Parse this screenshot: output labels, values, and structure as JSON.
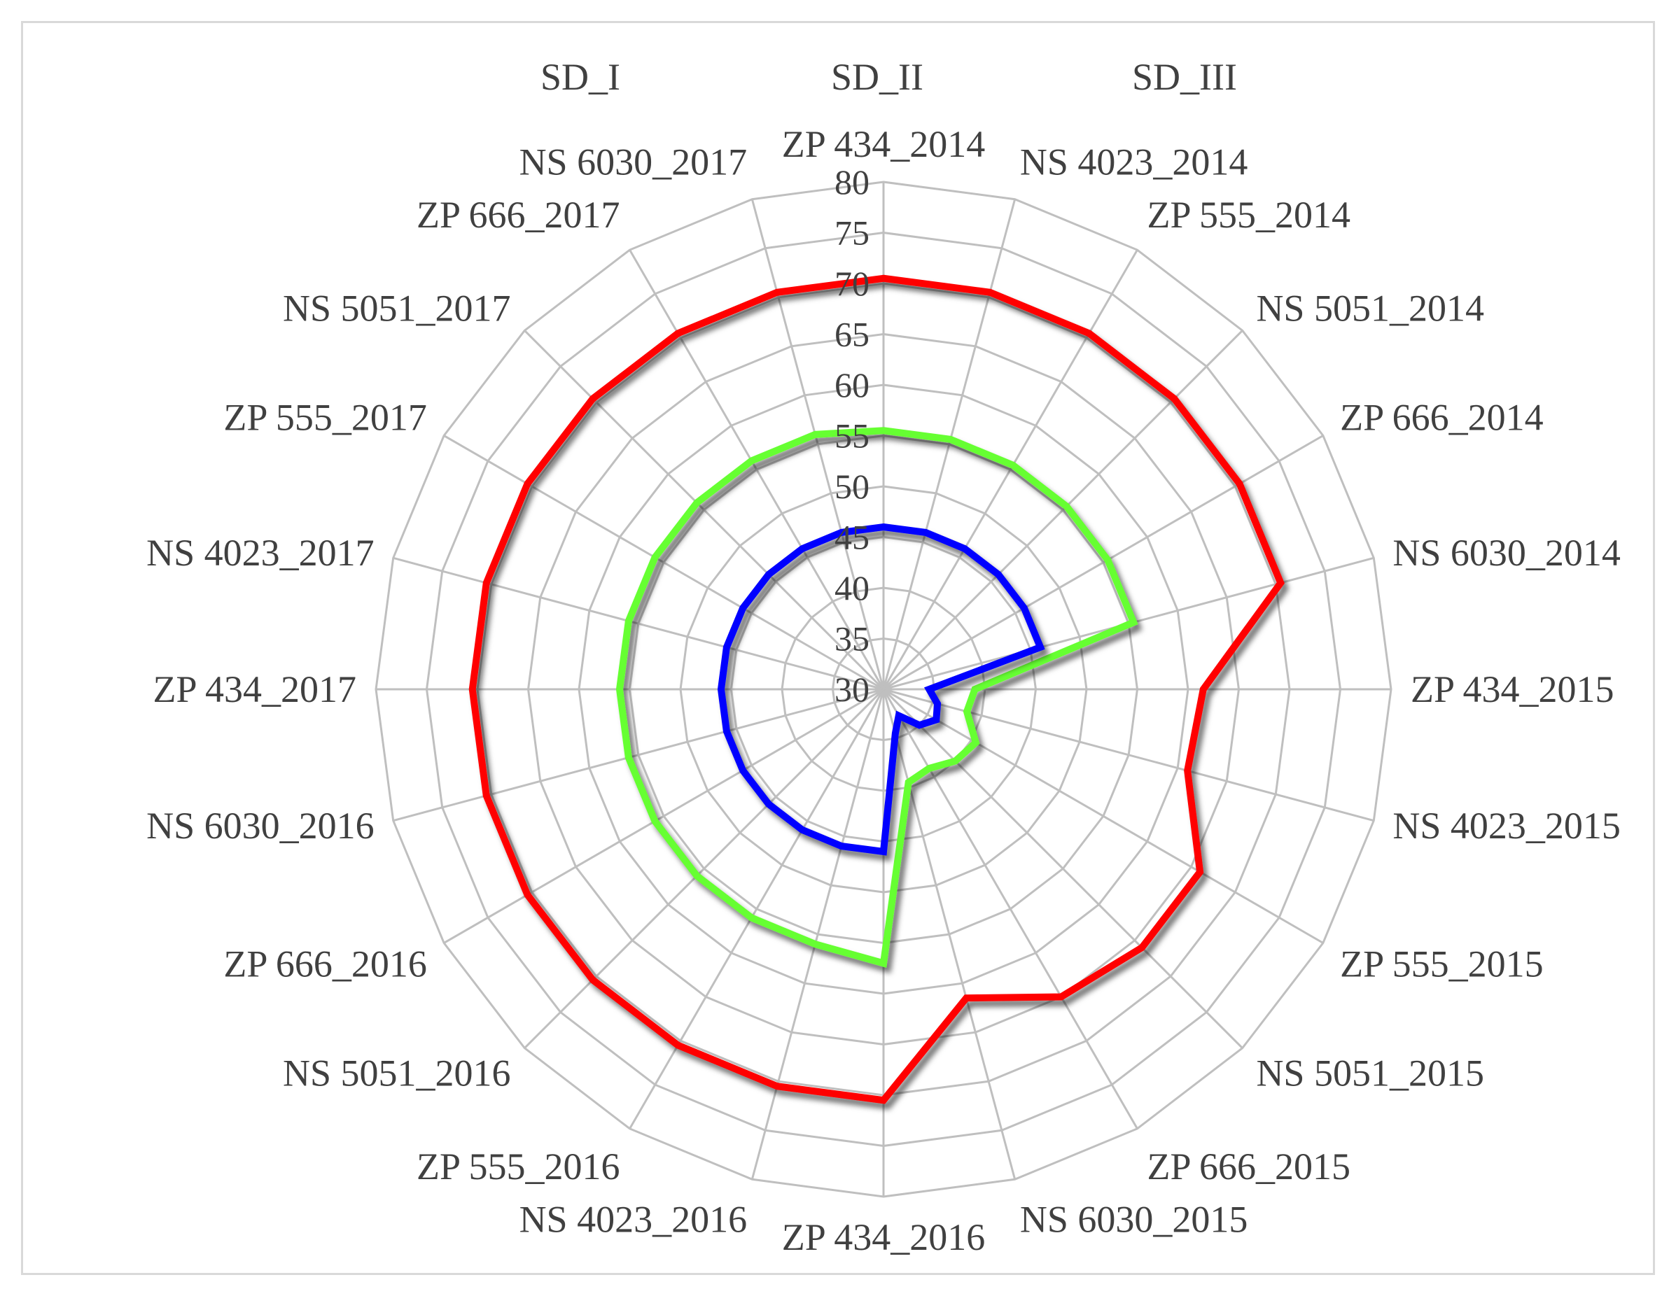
{
  "chart_data": {
    "type": "radar",
    "categories": [
      "ZP 434_2014",
      "NS 4023_2014",
      "ZP 555_2014",
      "NS 5051_2014",
      "ZP 666_2014",
      "NS 6030_2014",
      "ZP 434_2015",
      "NS 4023_2015",
      "ZP 555_2015",
      "NS 5051_2015",
      "ZP 666_2015",
      "NS 6030_2015",
      "ZP 434_2016",
      "NS 4023_2016",
      "ZP 555_2016",
      "NS 5051_2016",
      "ZP 666_2016",
      "NS 6030_2016",
      "ZP 434_2017",
      "NS 4023_2017",
      "ZP 555_2017",
      "NS 5051_2017",
      "ZP 666_2017",
      "NS 6030_2017"
    ],
    "r_range": [
      30,
      80
    ],
    "r_ticks": [
      "30",
      "35",
      "40",
      "45",
      "50",
      "55",
      "60",
      "65",
      "70",
      "75",
      "80"
    ],
    "grid": true,
    "legend_position": "top",
    "series": [
      {
        "name": "SD_I",
        "color": "#ff0000",
        "values": [
          70.5,
          70.5,
          70.5,
          70.5,
          70.5,
          70.5,
          61.5,
          61,
          66,
          66,
          65,
          61.5,
          70.5,
          70.5,
          70.5,
          70.5,
          70.5,
          70.5,
          70.5,
          70.5,
          70.5,
          70.5,
          70.5,
          70.5
        ]
      },
      {
        "name": "SD_II",
        "color": "#66ff33",
        "values": [
          55.5,
          55.5,
          55.5,
          55.5,
          55.5,
          55.5,
          39,
          38.5,
          40.5,
          40,
          39,
          39.5,
          57,
          56,
          56,
          56,
          56,
          56,
          56,
          56,
          56,
          56,
          56,
          56
        ]
      },
      {
        "name": "SD_III",
        "color": "#0000ff",
        "values": [
          46,
          46,
          46,
          46,
          46,
          46,
          34.5,
          35.5,
          36,
          35,
          33,
          34.5,
          46,
          46,
          46,
          46,
          46,
          46,
          46,
          46,
          46,
          46,
          46,
          46
        ]
      }
    ]
  }
}
